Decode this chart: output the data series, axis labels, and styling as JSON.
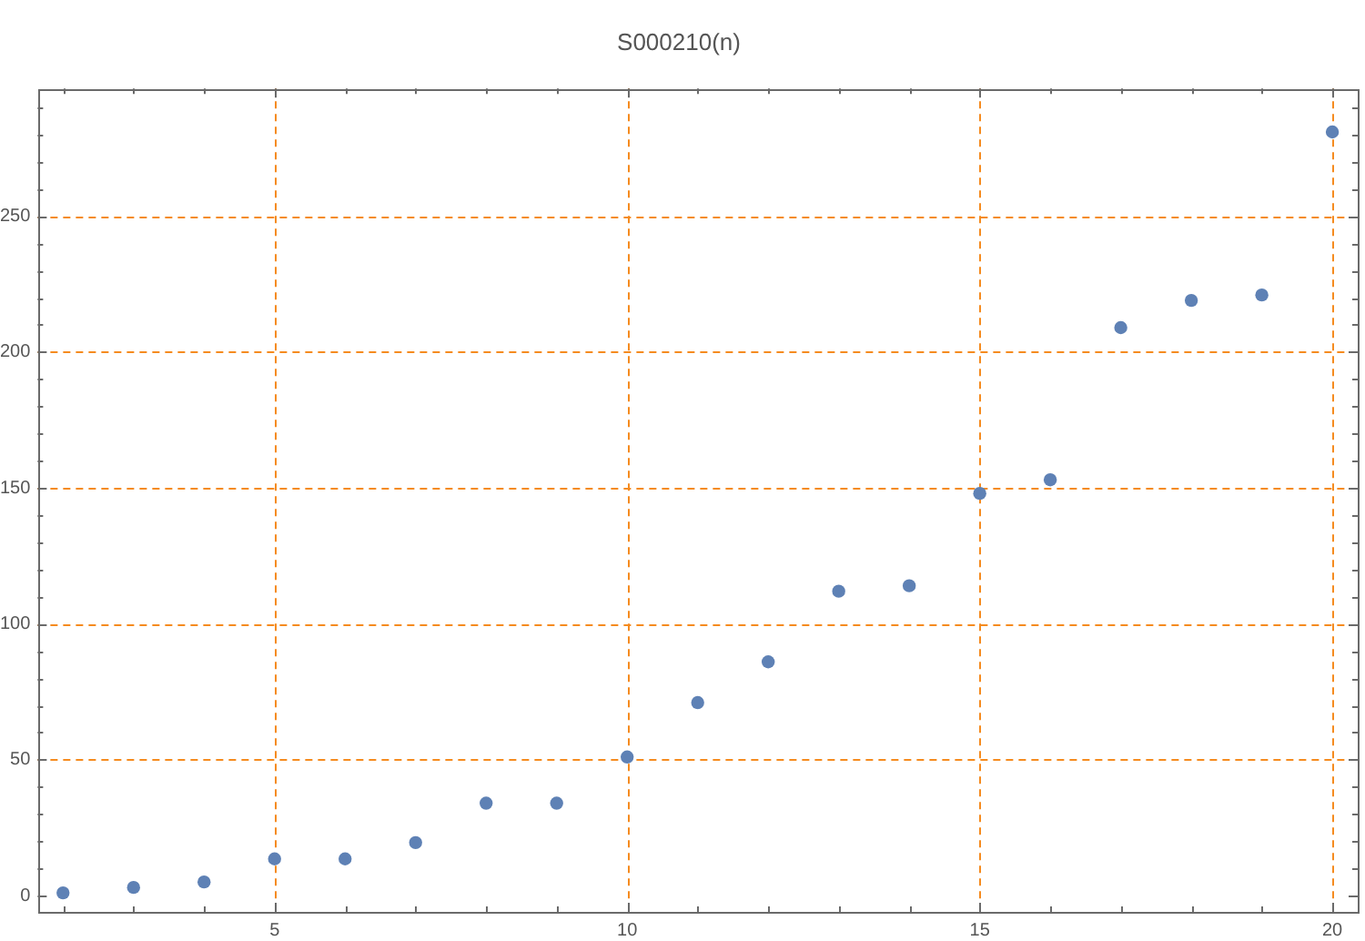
{
  "chart_data": {
    "type": "scatter",
    "title": "S000210(n)",
    "x": [
      2,
      3,
      4,
      5,
      6,
      7,
      8,
      9,
      10,
      11,
      12,
      13,
      14,
      15,
      16,
      17,
      18,
      19,
      20
    ],
    "values": [
      1,
      3,
      5,
      13.5,
      13.5,
      19.5,
      34,
      34,
      51,
      71,
      86,
      112,
      114,
      148,
      153,
      209,
      219,
      221,
      281
    ],
    "color": "#5e81b5",
    "marker": "circle",
    "xlim": [
      1.64,
      20.36
    ],
    "ylim": [
      -6,
      297
    ],
    "xticks": [
      {
        "value": 2,
        "label": null
      },
      {
        "value": 3,
        "label": null
      },
      {
        "value": 4,
        "label": null
      },
      5,
      {
        "value": 6,
        "label": null
      },
      {
        "value": 7,
        "label": null
      },
      {
        "value": 8,
        "label": null
      },
      {
        "value": 9,
        "label": null
      },
      10,
      {
        "value": 11,
        "label": null
      },
      {
        "value": 12,
        "label": null
      },
      {
        "value": 13,
        "label": null
      },
      {
        "value": 14,
        "label": null
      },
      15,
      {
        "value": 16,
        "label": null
      },
      {
        "value": 17,
        "label": null
      },
      {
        "value": 18,
        "label": null
      },
      {
        "value": 19,
        "label": null
      },
      20
    ],
    "yticks": [
      0,
      {
        "value": 10,
        "label": null
      },
      {
        "value": 20,
        "label": null
      },
      {
        "value": 30,
        "label": null
      },
      {
        "value": 40,
        "label": null
      },
      50,
      {
        "value": 60,
        "label": null
      },
      {
        "value": 70,
        "label": null
      },
      {
        "value": 80,
        "label": null
      },
      {
        "value": 90,
        "label": null
      },
      100,
      {
        "value": 110,
        "label": null
      },
      {
        "value": 120,
        "label": null
      },
      {
        "value": 130,
        "label": null
      },
      {
        "value": 140,
        "label": null
      },
      150,
      {
        "value": 160,
        "label": null
      },
      {
        "value": 170,
        "label": null
      },
      {
        "value": 180,
        "label": null
      },
      {
        "value": 190,
        "label": null
      },
      200,
      {
        "value": 210,
        "label": null
      },
      {
        "value": 220,
        "label": null
      },
      {
        "value": 230,
        "label": null
      },
      {
        "value": 240,
        "label": null
      },
      250,
      {
        "value": 260,
        "label": null
      },
      {
        "value": 270,
        "label": null
      },
      {
        "value": 280,
        "label": null
      },
      {
        "value": 290,
        "label": null
      }
    ],
    "ref_lines": [
      {
        "axis": "x",
        "value": 5,
        "color": "#f58b1f",
        "line_style": "dashed"
      },
      {
        "axis": "x",
        "value": 10,
        "color": "#f58b1f",
        "line_style": "dashed"
      },
      {
        "axis": "x",
        "value": 15,
        "color": "#f58b1f",
        "line_style": "dashed"
      },
      {
        "axis": "x",
        "value": 20,
        "color": "#f58b1f",
        "line_style": "dashed"
      },
      {
        "axis": "y",
        "value": 50,
        "color": "#f58b1f",
        "line_style": "dashed"
      },
      {
        "axis": "y",
        "value": 100,
        "color": "#f58b1f",
        "line_style": "dashed"
      },
      {
        "axis": "y",
        "value": 150,
        "color": "#f58b1f",
        "line_style": "dashed"
      },
      {
        "axis": "y",
        "value": 200,
        "color": "#f58b1f",
        "line_style": "dashed"
      },
      {
        "axis": "y",
        "value": 250,
        "color": "#f58b1f",
        "line_style": "dashed"
      }
    ]
  }
}
